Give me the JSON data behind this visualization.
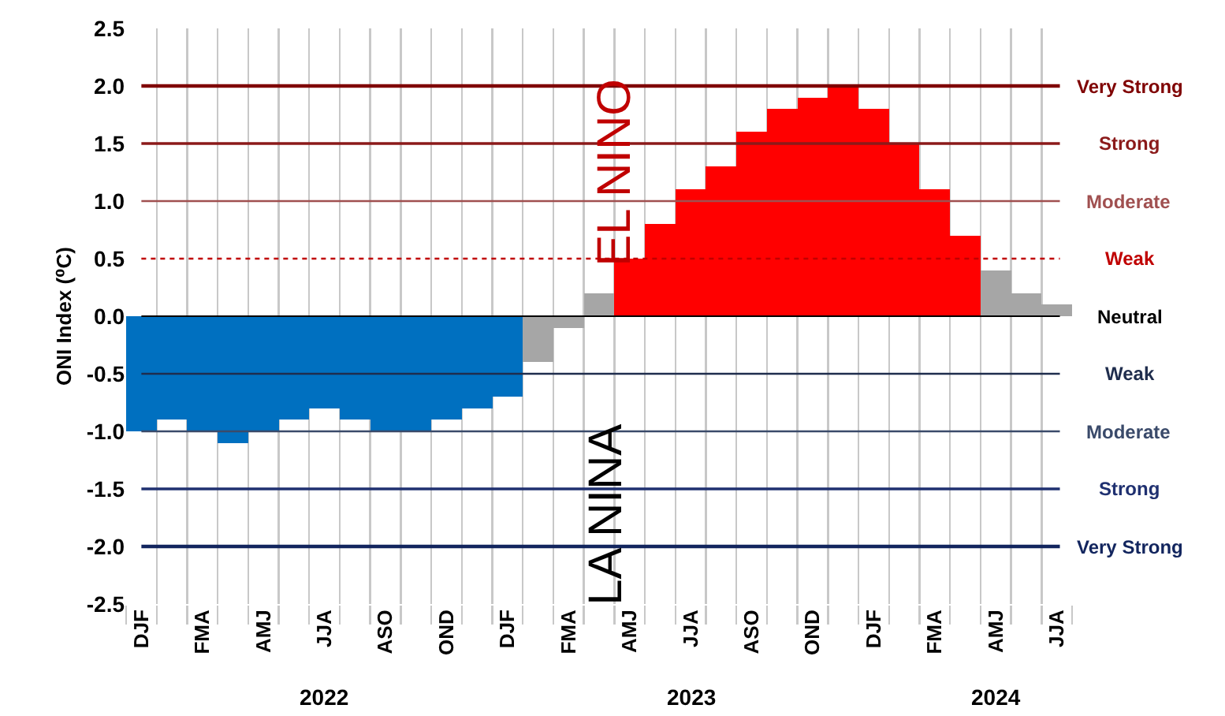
{
  "chart_data": {
    "type": "bar",
    "ylabel": "ONI Index (⁰C)",
    "categories": [
      "DJF",
      null,
      "FMA",
      null,
      "AMJ",
      null,
      "JJA",
      null,
      "ASO",
      null,
      "OND",
      null,
      "DJF",
      null,
      "FMA",
      null,
      "AMJ",
      null,
      "JJA",
      null,
      "ASO",
      null,
      "OND",
      null,
      "DJF",
      null,
      "FMA",
      null,
      "AMJ",
      null,
      "JJA"
    ],
    "values": [
      -1.0,
      -0.9,
      -1.0,
      -1.1,
      -1.0,
      -0.9,
      -0.8,
      -0.9,
      -1.0,
      -1.0,
      -0.9,
      -0.8,
      -0.7,
      -0.4,
      -0.1,
      0.2,
      0.5,
      0.8,
      1.1,
      1.3,
      1.6,
      1.8,
      1.9,
      2.0,
      1.8,
      1.5,
      1.1,
      0.7,
      0.4,
      0.2,
      0.1
    ],
    "colors": [
      "#0070c0",
      "#0070c0",
      "#0070c0",
      "#0070c0",
      "#0070c0",
      "#0070c0",
      "#0070c0",
      "#0070c0",
      "#0070c0",
      "#0070c0",
      "#0070c0",
      "#0070c0",
      "#0070c0",
      "#a6a6a6",
      "#a6a6a6",
      "#a6a6a6",
      "#ff0000",
      "#ff0000",
      "#ff0000",
      "#ff0000",
      "#ff0000",
      "#ff0000",
      "#ff0000",
      "#ff0000",
      "#ff0000",
      "#ff0000",
      "#ff0000",
      "#ff0000",
      "#a6a6a6",
      "#a6a6a6",
      "#a6a6a6"
    ],
    "ylim": [
      -2.5,
      2.5
    ],
    "yticks": [
      {
        "value": -2.5,
        "label": "-2.5"
      },
      {
        "value": -2,
        "label": "-2.0"
      },
      {
        "value": -1.5,
        "label": "-1.5"
      },
      {
        "value": -1,
        "label": "-1.0"
      },
      {
        "value": -0.5,
        "label": "-0.5"
      },
      {
        "value": 0,
        "label": "0.0"
      },
      {
        "value": 0.5,
        "label": "0.5"
      },
      {
        "value": 1,
        "label": "1.0"
      },
      {
        "value": 1.5,
        "label": "1.5"
      },
      {
        "value": 2,
        "label": "2.0"
      },
      {
        "value": 2.5,
        "label": "2.5"
      }
    ],
    "grid": "x",
    "ref_lines": [
      {
        "axis": "y",
        "value": 2,
        "label": "Very Strong",
        "color": "#7f0000",
        "line_style": "solid"
      },
      {
        "axis": "y",
        "value": 1.5,
        "label": "Strong",
        "color": "#8b1a1a",
        "line_style": "solid"
      },
      {
        "axis": "y",
        "value": 1,
        "label": "Moderate",
        "color": "#a05050",
        "line_style": "solid"
      },
      {
        "axis": "y",
        "value": 0.5,
        "label": "Weak",
        "color": "#c00000",
        "line_style": "dotted"
      },
      {
        "axis": "y",
        "value": 0,
        "label": "Neutral",
        "color": "#000000",
        "line_style": "solid"
      },
      {
        "axis": "y",
        "value": -0.5,
        "label": "Weak",
        "color": "#1f2d4d",
        "line_style": "solid"
      },
      {
        "axis": "y",
        "value": -1,
        "label": "Moderate",
        "color": "#3a4a6a",
        "line_style": "solid"
      },
      {
        "axis": "y",
        "value": -1.5,
        "label": "Strong",
        "color": "#1f3070",
        "line_style": "solid"
      },
      {
        "axis": "y",
        "value": -2,
        "label": "Very Strong",
        "color": "#12255e",
        "line_style": "solid"
      }
    ],
    "annotations": [
      "EL NINO",
      "LA NINA",
      "2022",
      "2023",
      "2024"
    ]
  }
}
